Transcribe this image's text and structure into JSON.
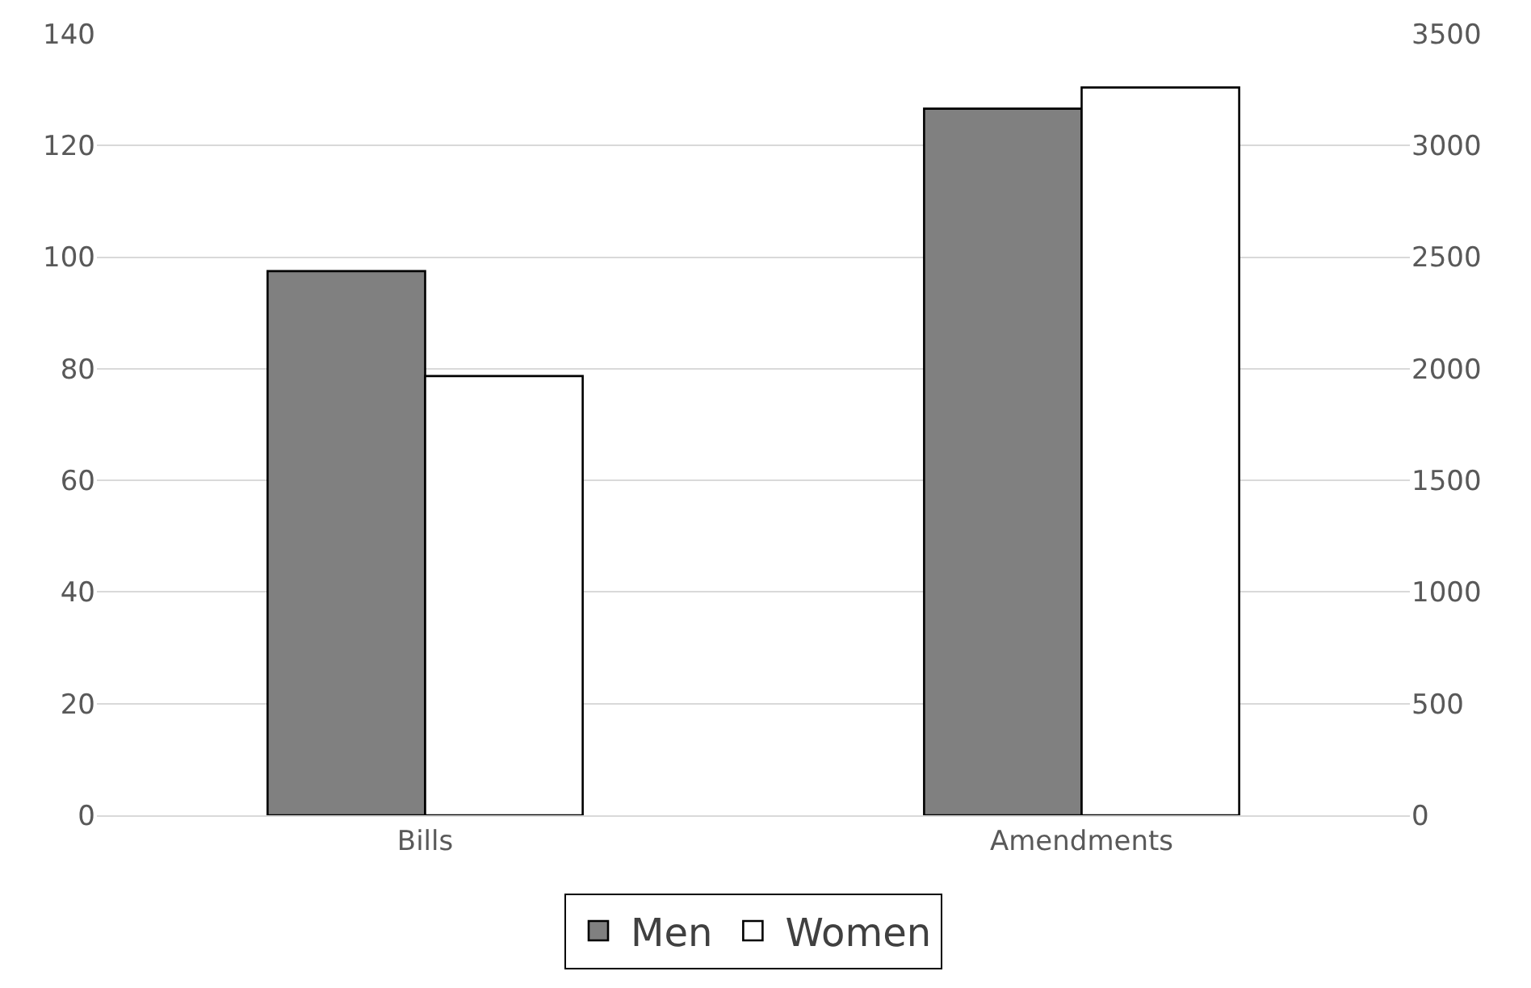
{
  "chart_data": {
    "type": "bar",
    "categories": [
      "Bills",
      "Amendments"
    ],
    "series": [
      {
        "name": "Men",
        "color": "#808080",
        "values": [
          97.5,
          null
        ]
      },
      {
        "name": "Women",
        "color": "#ffffff",
        "values": [
          78.7,
          null
        ]
      },
      {
        "color": "#808080",
        "values": [
          null,
          3165
        ],
        "axis": "y2"
      },
      {
        "color": "#ffffff",
        "values": [
          null,
          3260
        ],
        "axis": "y2"
      }
    ],
    "ylim": [
      0,
      140
    ],
    "yticks": [
      0,
      20,
      40,
      60,
      80,
      100,
      120,
      140
    ],
    "y2lim": [
      0,
      3500
    ],
    "y2ticks": [
      0,
      500,
      1000,
      1500,
      2000,
      2500,
      3000,
      3500
    ],
    "grid": "y",
    "legend": "bottom"
  }
}
